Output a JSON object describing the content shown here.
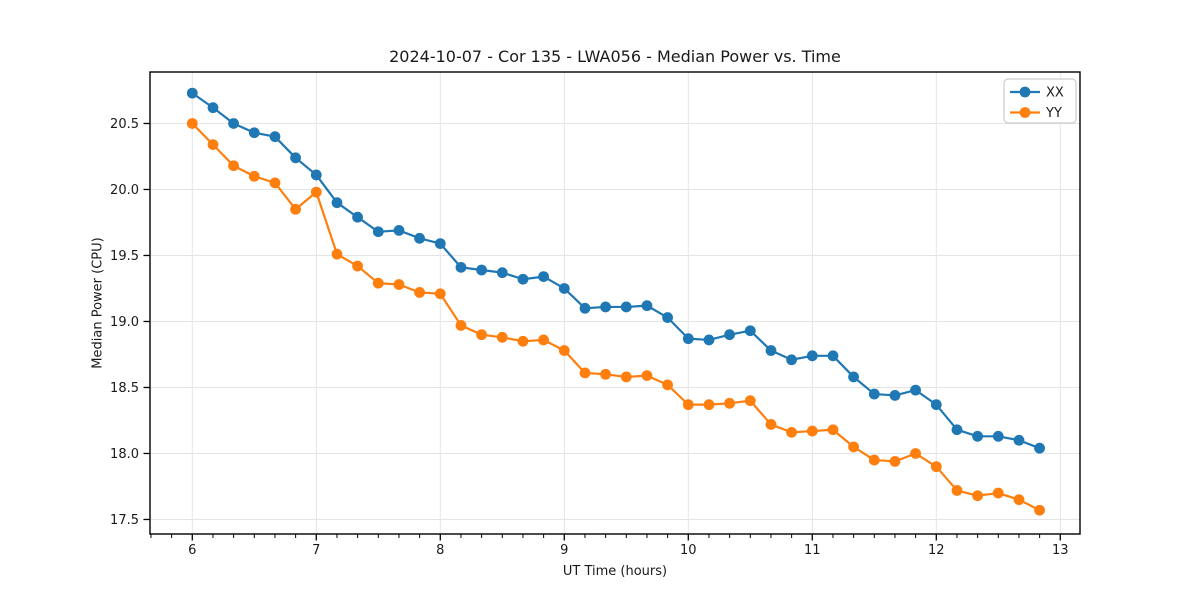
{
  "chart_data": {
    "type": "line",
    "title": "2024-10-07 - Cor 135 - LWA056 - Median Power vs. Time",
    "xlabel": "UT Time (hours)",
    "ylabel": "Median Power (CPU)",
    "xlim": [
      5.659,
      13.159
    ],
    "ylim": [
      17.39,
      20.89
    ],
    "xticks": [
      6,
      7,
      8,
      9,
      10,
      11,
      12,
      13
    ],
    "yticks": [
      17.5,
      18.0,
      18.5,
      19.0,
      19.5,
      20.0,
      20.5
    ],
    "x_minor_step": 0.166667,
    "grid": true,
    "grid_color": "#e4e4e4",
    "legend_position": "upper right",
    "x": [
      6.0,
      6.167,
      6.333,
      6.5,
      6.667,
      6.833,
      7.0,
      7.167,
      7.333,
      7.5,
      7.667,
      7.833,
      8.0,
      8.167,
      8.333,
      8.5,
      8.667,
      8.833,
      9.0,
      9.167,
      9.333,
      9.5,
      9.667,
      9.833,
      10.0,
      10.167,
      10.333,
      10.5,
      10.667,
      10.833,
      11.0,
      11.167,
      11.333,
      11.5,
      11.667,
      11.833,
      12.0,
      12.167,
      12.333,
      12.5,
      12.667,
      12.833
    ],
    "series": [
      {
        "name": "XX",
        "color": "#1f77b4",
        "values": [
          20.73,
          20.62,
          20.5,
          20.43,
          20.4,
          20.24,
          20.11,
          19.9,
          19.79,
          19.68,
          19.69,
          19.63,
          19.59,
          19.41,
          19.39,
          19.37,
          19.32,
          19.34,
          19.25,
          19.1,
          19.11,
          19.11,
          19.12,
          19.03,
          18.87,
          18.86,
          18.9,
          18.93,
          18.78,
          18.71,
          18.74,
          18.74,
          18.58,
          18.45,
          18.44,
          18.48,
          18.37,
          18.18,
          18.13,
          18.13,
          18.1,
          18.04
        ]
      },
      {
        "name": "YY",
        "color": "#ff7f0e",
        "values": [
          20.5,
          20.34,
          20.18,
          20.1,
          20.05,
          19.85,
          19.98,
          19.51,
          19.42,
          19.29,
          19.28,
          19.22,
          19.21,
          18.97,
          18.9,
          18.88,
          18.85,
          18.86,
          18.78,
          18.61,
          18.6,
          18.58,
          18.59,
          18.52,
          18.37,
          18.37,
          18.38,
          18.4,
          18.22,
          18.16,
          18.17,
          18.18,
          18.05,
          17.95,
          17.94,
          18.0,
          17.9,
          17.72,
          17.68,
          17.7,
          17.65,
          17.57
        ]
      }
    ]
  }
}
